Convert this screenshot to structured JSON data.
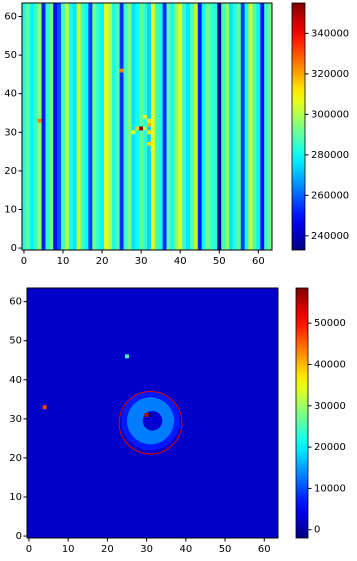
{
  "chart_data": [
    {
      "type": "heatmap",
      "colormap": "jet",
      "xlim": [
        -0.5,
        63.5
      ],
      "ylim": [
        -0.5,
        63.5
      ],
      "xticks": [
        0,
        10,
        20,
        30,
        40,
        50,
        60
      ],
      "yticks": [
        0,
        10,
        20,
        30,
        40,
        50,
        60
      ],
      "clim": [
        233000,
        355000
      ],
      "cticks": [
        240000,
        260000,
        280000,
        300000,
        320000,
        340000
      ],
      "stripes": [
        282000,
        290000,
        278000,
        286000,
        296000,
        252000,
        284000,
        292000,
        250000,
        258000,
        288000,
        302000,
        280000,
        276000,
        304000,
        286000,
        280000,
        256000,
        292000,
        284000,
        278000,
        306000,
        300000,
        282000,
        288000,
        254000,
        286000,
        294000,
        276000,
        280000,
        290000,
        284000,
        274000,
        306000,
        286000,
        282000,
        254000,
        290000,
        280000,
        296000,
        304000,
        284000,
        276000,
        288000,
        302000,
        252000,
        280000,
        292000,
        286000,
        282000,
        236000,
        288000,
        296000,
        276000,
        284000,
        290000,
        256000,
        282000,
        304000,
        288000,
        278000,
        250000,
        286000,
        292000
      ],
      "spots": [
        {
          "x": 4,
          "y": 33,
          "value": 325000
        },
        {
          "x": 25,
          "y": 46,
          "value": 325000
        },
        {
          "x": 29,
          "y": 31,
          "value": 315000
        },
        {
          "x": 30,
          "y": 31,
          "value": 355000
        },
        {
          "x": 31,
          "y": 31,
          "value": 300000
        },
        {
          "x": 32,
          "y": 32,
          "value": 318000
        },
        {
          "x": 32,
          "y": 33,
          "value": 312000
        },
        {
          "x": 32,
          "y": 30,
          "value": 312000
        },
        {
          "x": 32,
          "y": 27,
          "value": 314000
        },
        {
          "x": 33,
          "y": 26,
          "value": 310000
        },
        {
          "x": 33,
          "y": 28,
          "value": 306000
        },
        {
          "x": 28,
          "y": 30,
          "value": 306000
        },
        {
          "x": 31,
          "y": 34,
          "value": 305000
        }
      ]
    },
    {
      "type": "heatmap",
      "colormap": "jet",
      "xlim": [
        -0.5,
        63.5
      ],
      "ylim": [
        -0.5,
        63.5
      ],
      "xticks": [
        0,
        10,
        20,
        30,
        40,
        50,
        60
      ],
      "yticks": [
        0,
        10,
        20,
        30,
        40,
        50,
        60
      ],
      "clim": [
        -2000,
        58500
      ],
      "cticks": [
        0,
        10000,
        20000,
        30000,
        40000,
        50000
      ],
      "background": 2500,
      "blobs": [
        {
          "x": 31,
          "y": 29.5,
          "radius": 7.5,
          "value": 7000
        },
        {
          "x": 31,
          "y": 29.5,
          "radius": 6,
          "value": 13000
        },
        {
          "x": 31.5,
          "y": 29.5,
          "radius": 2.5,
          "value": 3000
        }
      ],
      "spots": [
        {
          "x": 4,
          "y": 33,
          "value": 47000
        },
        {
          "x": 25,
          "y": 46,
          "value": 24000
        },
        {
          "x": 30,
          "y": 31,
          "value": 55000
        },
        {
          "x": 31,
          "y": 31,
          "value": -2000
        }
      ],
      "annotations": [
        {
          "shape": "circle",
          "x": 31,
          "y": 29,
          "radius": 8,
          "color": "#e00000"
        }
      ]
    }
  ]
}
